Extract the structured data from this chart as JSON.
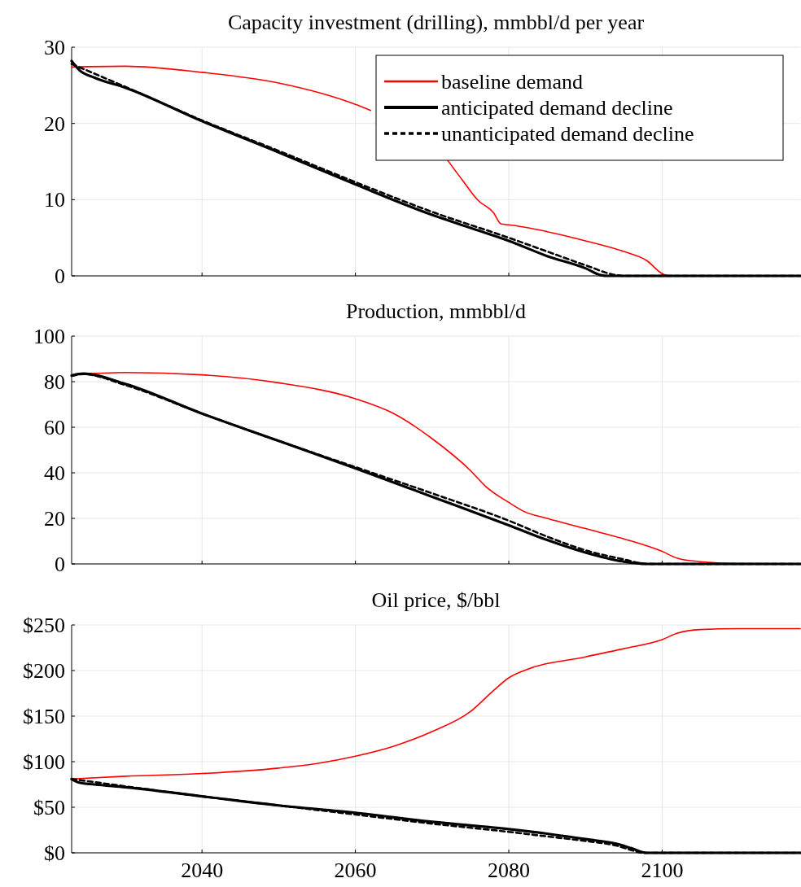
{
  "chart_data": [
    {
      "type": "line",
      "title": "Capacity investment (drilling), mmbbl/d per year",
      "xlim": [
        2023,
        2118
      ],
      "xticks": [
        2040,
        2060,
        2080,
        2100
      ],
      "ylim": [
        0,
        30
      ],
      "yticks": [
        0,
        10,
        20,
        30
      ],
      "grid": true,
      "legend": "top right",
      "tick_labels": "y",
      "series": [
        {
          "name": "baseline demand",
          "color": "#ff0000",
          "line_style": "solid",
          "x": [
            2023,
            2030,
            2040,
            2050,
            2060,
            2062,
            2064,
            2066,
            2068,
            2070,
            2072,
            2074,
            2076,
            2078,
            2079,
            2080,
            2085,
            2090,
            2095,
            2098,
            2100,
            2101,
            2118
          ],
          "values": [
            27.4,
            27.5,
            26.7,
            25.3,
            22.5,
            21.7,
            null,
            null,
            null,
            null,
            15.2,
            12.5,
            9.9,
            8.3,
            6.8,
            6.7,
            5.8,
            4.6,
            3.2,
            2,
            0.3,
            0,
            0
          ]
        },
        {
          "name": "anticipated demand decline",
          "color": "#000000",
          "line_style": "solid",
          "x": [
            2023,
            2024,
            2026,
            2030,
            2040,
            2050,
            2060,
            2070,
            2075,
            2080,
            2085,
            2090,
            2092,
            2093,
            2118
          ],
          "values": [
            28.2,
            27,
            26,
            24.7,
            20.3,
            16.2,
            12,
            8,
            6.3,
            4.6,
            2.6,
            1,
            0.1,
            0,
            0
          ]
        },
        {
          "name": "unanticipated demand decline",
          "color": "#000000",
          "line_style": "dashed",
          "x": [
            2023,
            2030,
            2040,
            2050,
            2060,
            2070,
            2080,
            2085,
            2090,
            2094,
            2095,
            2118
          ],
          "values": [
            27.8,
            24.8,
            20.4,
            16.4,
            12.3,
            8.4,
            5,
            3.2,
            1.4,
            0.1,
            0,
            0
          ]
        }
      ]
    },
    {
      "type": "line",
      "title": "Production, mmbbl/d",
      "xlim": [
        2023,
        2118
      ],
      "xticks": [
        2040,
        2060,
        2080,
        2100
      ],
      "ylim": [
        0,
        100
      ],
      "yticks": [
        0,
        20,
        40,
        60,
        80,
        100
      ],
      "grid": true,
      "tick_labels": "y",
      "series": [
        {
          "color": "#ff0000",
          "line_style": "solid",
          "x": [
            2023,
            2030,
            2040,
            2050,
            2060,
            2065,
            2070,
            2075,
            2077,
            2080,
            2082,
            2085,
            2090,
            2095,
            2100,
            2102,
            2105,
            2110,
            2118
          ],
          "values": [
            83,
            84,
            83,
            79.5,
            72.5,
            66,
            55,
            41,
            34,
            27,
            23,
            20,
            15.5,
            11,
            5.5,
            2.5,
            1,
            0.2,
            0
          ]
        },
        {
          "color": "#000000",
          "line_style": "solid",
          "x": [
            2023,
            2024.5,
            2030,
            2040,
            2050,
            2060,
            2070,
            2080,
            2085,
            2090,
            2095,
            2098,
            2118
          ],
          "values": [
            82.7,
            83.5,
            79,
            66,
            54,
            42,
            29.5,
            17,
            10.5,
            5,
            1,
            0,
            0
          ]
        },
        {
          "color": "#000000",
          "line_style": "dashed",
          "x": [
            2023,
            2024.5,
            2030,
            2040,
            2050,
            2060,
            2070,
            2080,
            2085,
            2090,
            2095,
            2098,
            2118
          ],
          "values": [
            82.5,
            83.3,
            78.5,
            66,
            54,
            42.5,
            31,
            19,
            12,
            6,
            2,
            0,
            0
          ]
        }
      ]
    },
    {
      "type": "line",
      "title": "Oil price, $/bbl",
      "xlim": [
        2023,
        2118
      ],
      "xticks": [
        2040,
        2060,
        2080,
        2100
      ],
      "ylim": [
        0,
        250
      ],
      "yticks": [
        {
          "value": 0,
          "label": "$0"
        },
        {
          "value": 50,
          "label": "$50"
        },
        {
          "value": 100,
          "label": "$100"
        },
        {
          "value": 150,
          "label": "$150"
        },
        {
          "value": 200,
          "label": "$200"
        },
        {
          "value": 250,
          "label": "$250"
        }
      ],
      "grid": true,
      "series": [
        {
          "color": "#ff0000",
          "line_style": "solid",
          "x": [
            2023,
            2030,
            2040,
            2050,
            2055,
            2060,
            2065,
            2070,
            2075,
            2078,
            2080,
            2082,
            2090,
            2095,
            2100,
            2102,
            2105,
            2110,
            2118
          ],
          "values": [
            81,
            84,
            87,
            93,
            98,
            106,
            117,
            133,
            155,
            178,
            192,
            200,
            215,
            224,
            234,
            241,
            245,
            246,
            246
          ]
        },
        {
          "color": "#000000",
          "line_style": "solid",
          "x": [
            2023,
            2024,
            2026,
            2030,
            2040,
            2050,
            2060,
            2070,
            2080,
            2085,
            2090,
            2094,
            2096,
            2098,
            2118
          ],
          "values": [
            81,
            77,
            75,
            72,
            62,
            52,
            44,
            34,
            26,
            21,
            15,
            10,
            5,
            0,
            0
          ]
        },
        {
          "color": "#000000",
          "line_style": "dashed",
          "x": [
            2023,
            2030,
            2040,
            2050,
            2060,
            2070,
            2080,
            2085,
            2090,
            2094,
            2096,
            2097.5,
            2118
          ],
          "values": [
            81,
            73,
            62,
            52,
            42,
            32,
            23,
            18,
            13,
            8,
            3,
            0,
            0
          ]
        }
      ]
    }
  ]
}
